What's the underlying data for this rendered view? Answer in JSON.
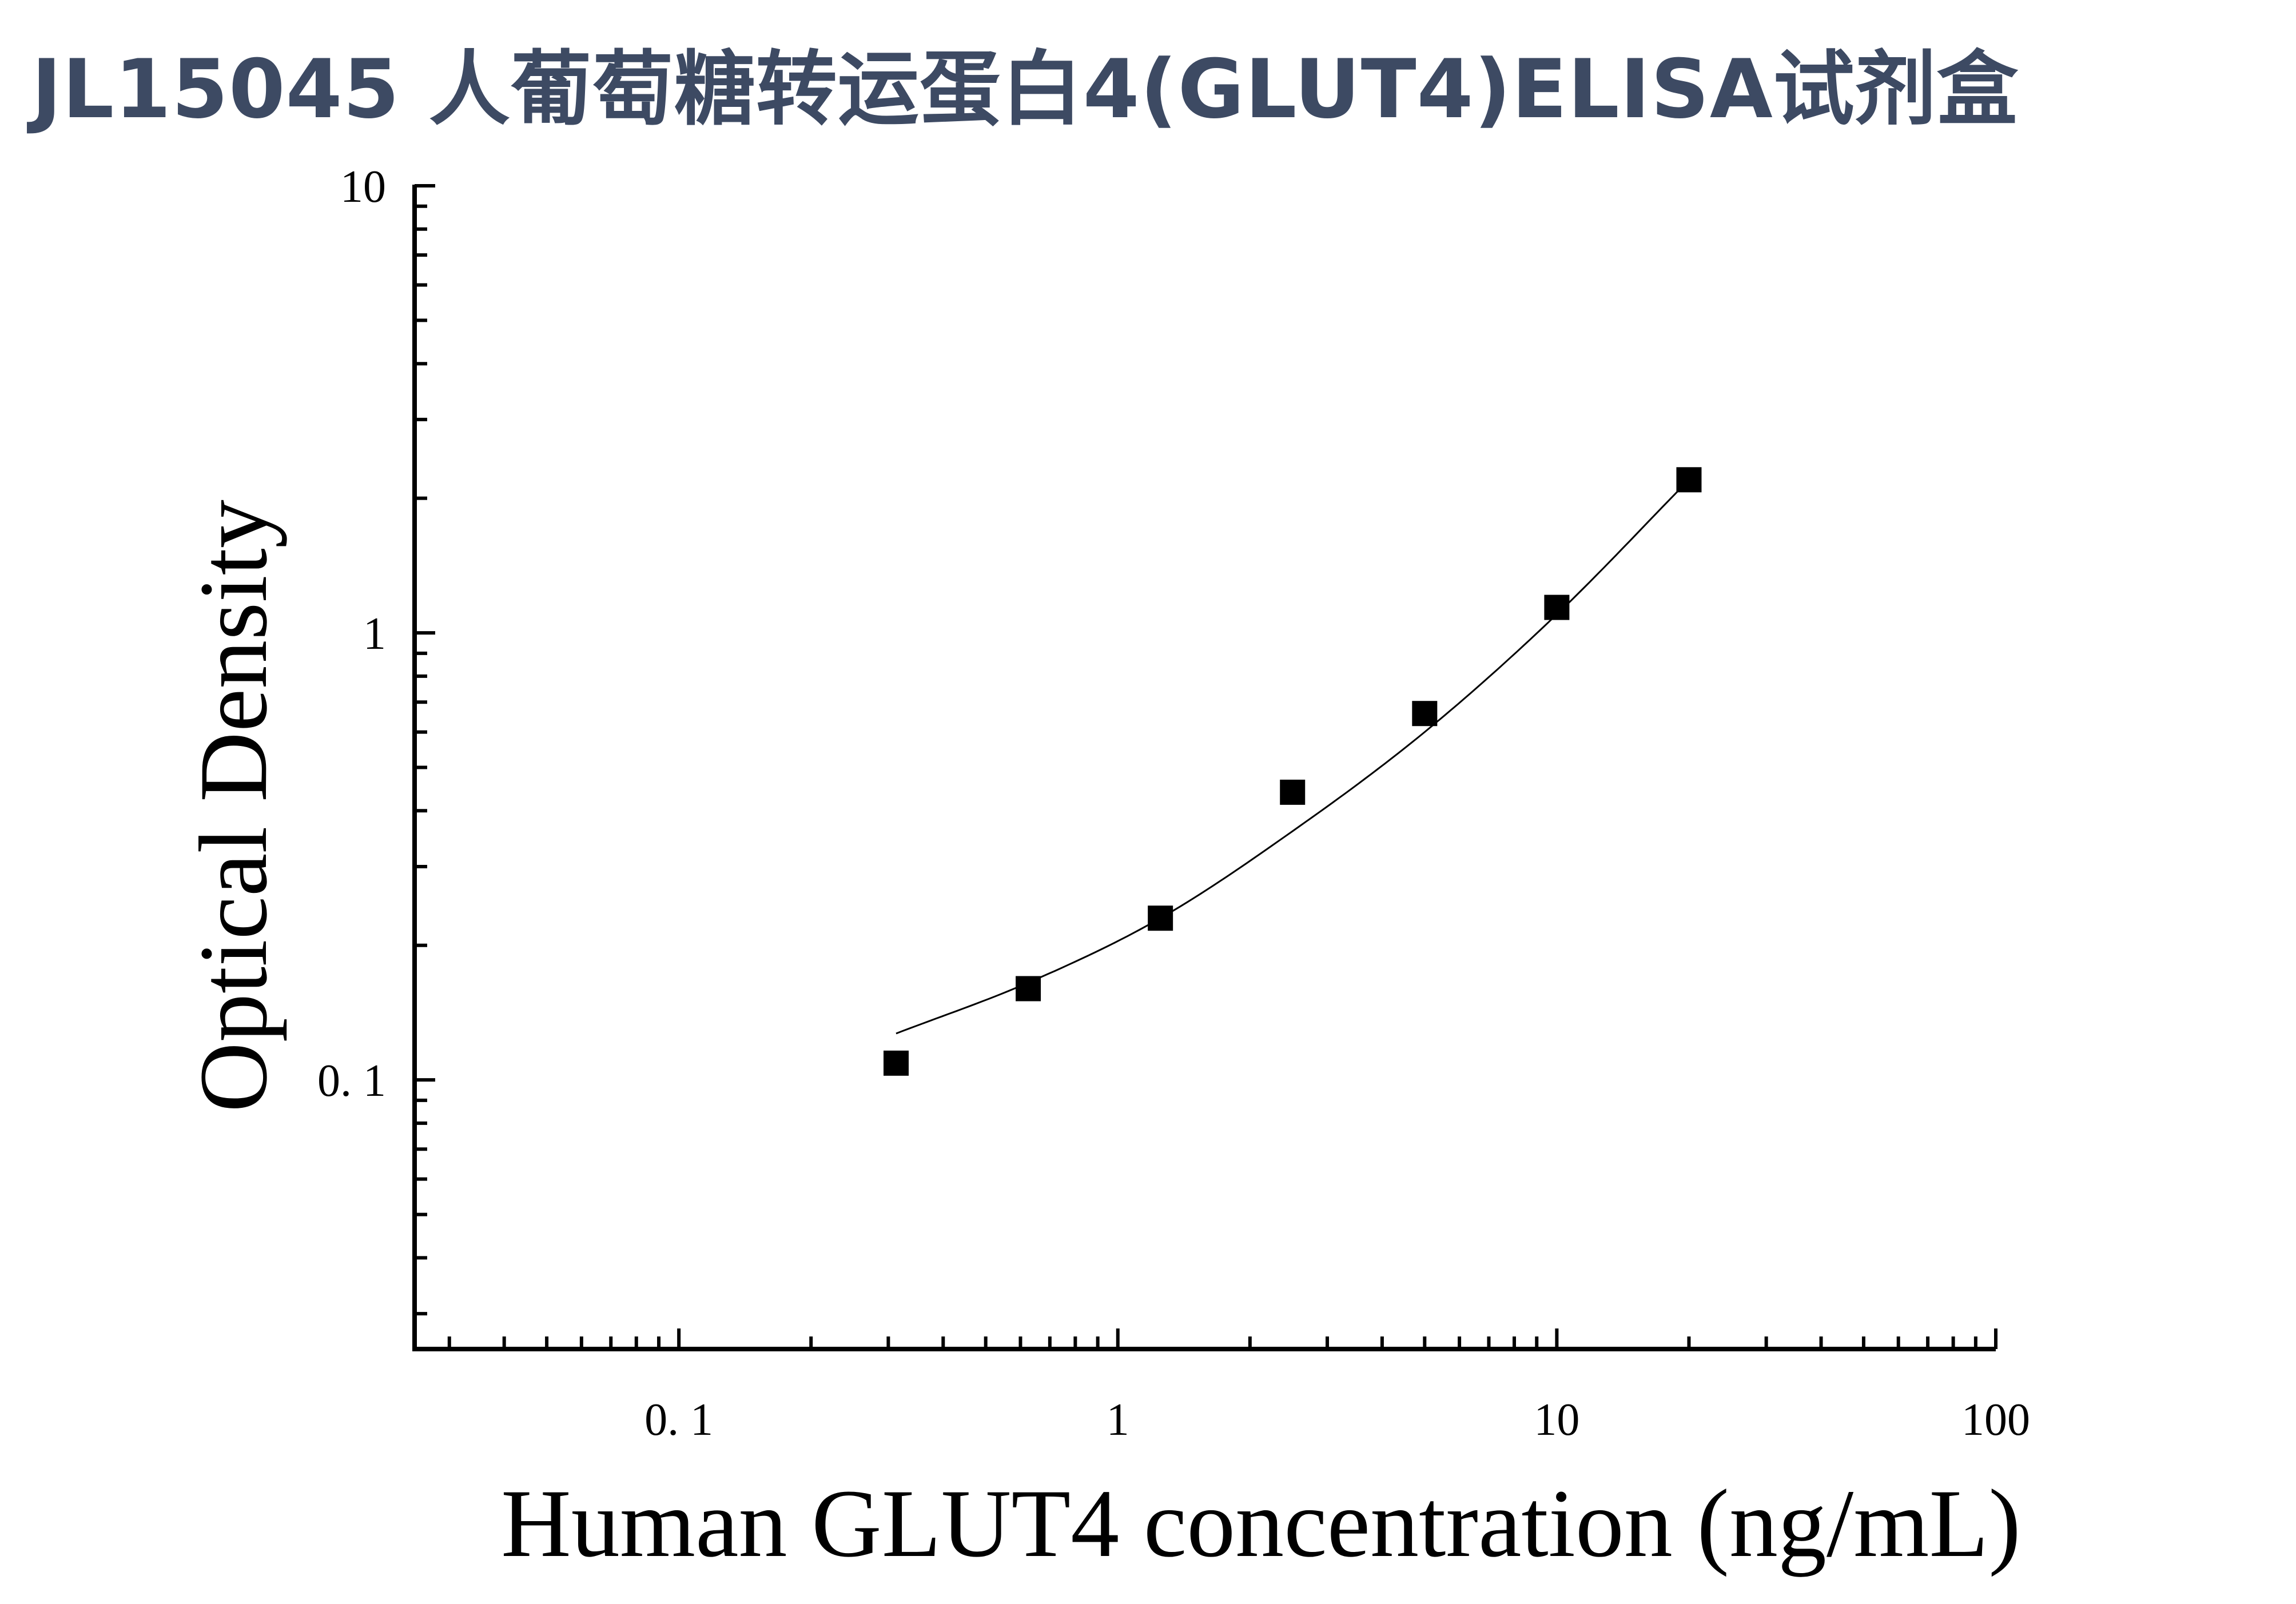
{
  "title": "JL15045 人葡萄糖转运蛋白4(GLUT4)ELISA试剂盒",
  "chart_data": {
    "type": "scatter",
    "title": "JL15045 人葡萄糖转运蛋白4(GLUT4)ELISA试剂盒",
    "xlabel": "Human GLUT4 concentration (ng/mL)",
    "ylabel": "Optical Density",
    "xscale": "log",
    "yscale": "log",
    "xlim": [
      0.025,
      100
    ],
    "ylim": [
      0.025,
      10
    ],
    "xticks": [
      0.1,
      1,
      10,
      100
    ],
    "xtick_labels": [
      "0. 1",
      "1",
      "10",
      "100"
    ],
    "yticks": [
      0.1,
      1,
      10
    ],
    "ytick_labels": [
      "0. 1",
      "1",
      "10"
    ],
    "grid": false,
    "legend": "none",
    "marker": "square",
    "color": "#000000",
    "series": [
      {
        "x": [
          0.3125,
          0.625,
          1.25,
          2.5,
          5,
          10,
          20
        ],
        "y": [
          0.109,
          0.16,
          0.23,
          0.44,
          0.66,
          1.14,
          2.2
        ]
      }
    ],
    "fit_curve": {
      "x": [
        0.3125,
        0.625,
        1.25,
        2.5,
        5,
        10,
        20
      ],
      "y": [
        0.127,
        0.165,
        0.23,
        0.36,
        0.6,
        1.1,
        2.2
      ]
    }
  }
}
